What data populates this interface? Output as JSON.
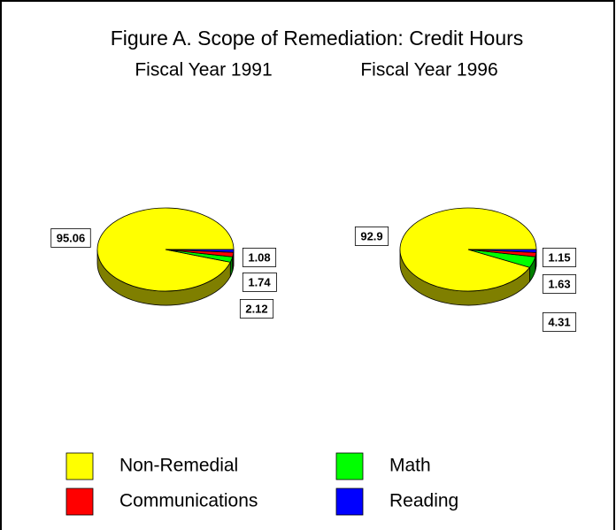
{
  "title": "Figure A.  Scope of Remediation: Credit Hours",
  "chart_data": [
    {
      "type": "pie",
      "title": "Fiscal Year 1991",
      "categories": [
        "Non-Remedial",
        "Math",
        "Communications",
        "Reading"
      ],
      "values": [
        95.06,
        2.12,
        1.74,
        1.08
      ],
      "colors": [
        "#ffff00",
        "#00ff00",
        "#ff0000",
        "#0000ff"
      ]
    },
    {
      "type": "pie",
      "title": "Fiscal Year 1996",
      "categories": [
        "Non-Remedial",
        "Math",
        "Communications",
        "Reading"
      ],
      "values": [
        92.9,
        4.31,
        1.63,
        1.15
      ],
      "colors": [
        "#ffff00",
        "#00ff00",
        "#ff0000",
        "#0000ff"
      ]
    }
  ]
}
